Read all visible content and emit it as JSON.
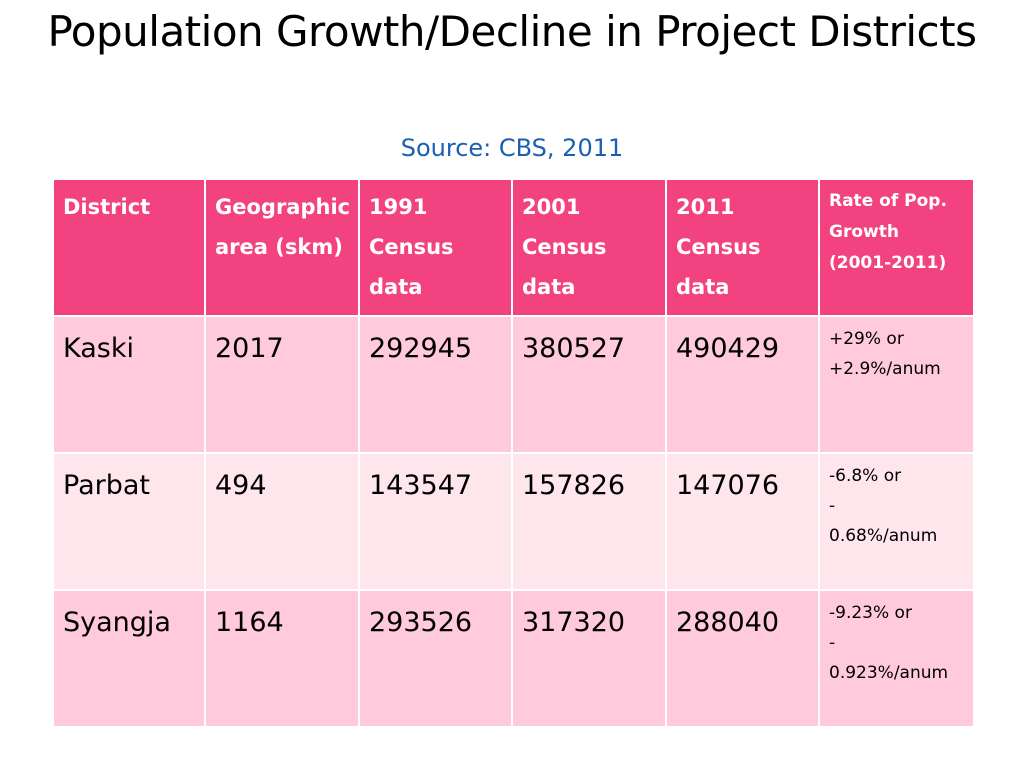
{
  "title": "Population Growth/Decline in Project Districts",
  "source": "Source: CBS, 2011",
  "colors": {
    "header_bg": "#f2427f",
    "row_odd_bg": "#ffcadb",
    "row_even_bg": "#ffe6ed",
    "source_text": "#1a5fb4"
  },
  "table": {
    "headers": [
      "District",
      "Geographic area (skm)",
      "1991 Census data",
      "2001 Census data",
      "2011 Census data",
      "Rate of Pop. Growth (2001-2011)"
    ],
    "rows": [
      {
        "district": "Kaski",
        "area": "2017",
        "c1991": "292945",
        "c2001": "380527",
        "c2011": "490429",
        "rate": "+29% or\n+2.9%/anum"
      },
      {
        "district": "Parbat",
        "area": "494",
        "c1991": "143547",
        "c2001": "157826",
        "c2011": "147076",
        "rate": "-6.8% or\n-\n0.68%/anum"
      },
      {
        "district": "Syangja",
        "area": "1164",
        "c1991": "293526",
        "c2001": "317320",
        "c2011": "288040",
        "rate": "-9.23% or\n-\n0.923%/anum"
      }
    ]
  }
}
